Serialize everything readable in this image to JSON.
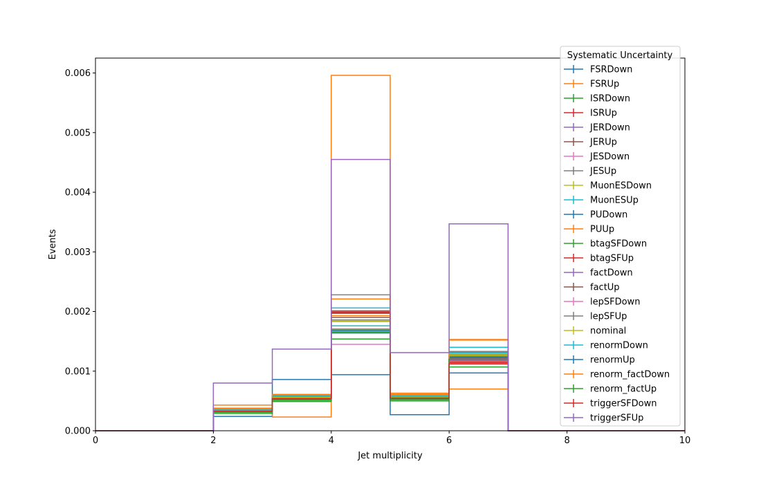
{
  "chart_data": {
    "type": "step-histogram",
    "xlabel": "Jet multiplicity",
    "ylabel": "Events",
    "xlim": [
      0,
      10
    ],
    "ylim": [
      0,
      0.00625
    ],
    "grid": false,
    "bin_edges": [
      0,
      1,
      2,
      3,
      4,
      5,
      6,
      7,
      8,
      9,
      10
    ],
    "x_ticks": [
      0,
      2,
      4,
      6,
      8,
      10
    ],
    "x_tick_labels": [
      "0",
      "2",
      "4",
      "6",
      "8",
      "10"
    ],
    "y_ticks": [
      0,
      0.001,
      0.002,
      0.003,
      0.004,
      0.005,
      0.006
    ],
    "y_tick_labels": [
      "0.000",
      "0.001",
      "0.002",
      "0.003",
      "0.004",
      "0.005",
      "0.006"
    ],
    "legend": {
      "title": "Systematic Uncertainty",
      "placement": "upper-right-outside"
    },
    "series": [
      {
        "name": "FSRDown",
        "color": "#1f77b4",
        "values": [
          0,
          0,
          0.00024,
          0.00086,
          0.00094,
          0.00027,
          0.00097,
          0,
          0,
          0
        ]
      },
      {
        "name": "FSRUp",
        "color": "#ff7f0e",
        "values": [
          0,
          0,
          0.00043,
          0.00023,
          0.00596,
          0.00063,
          0.0007,
          0,
          0,
          0
        ]
      },
      {
        "name": "ISRDown",
        "color": "#2ca02c",
        "values": [
          0,
          0,
          0.00029,
          0.00049,
          0.00154,
          0.0005,
          0.00107,
          0,
          0,
          0
        ]
      },
      {
        "name": "ISRUp",
        "color": "#d62728",
        "values": [
          0,
          0,
          0.00031,
          0.00052,
          0.00201,
          0.00054,
          0.00114,
          0,
          0,
          0
        ]
      },
      {
        "name": "JERDown",
        "color": "#9467bd",
        "values": [
          0,
          0,
          0.00032,
          0.00054,
          0.00167,
          0.00055,
          0.00118,
          0,
          0,
          0
        ]
      },
      {
        "name": "JERUp",
        "color": "#8c564b",
        "values": [
          0,
          0,
          0.00034,
          0.00055,
          0.00198,
          0.00056,
          0.00123,
          0,
          0,
          0
        ]
      },
      {
        "name": "JESDown",
        "color": "#e377c2",
        "values": [
          0,
          0,
          0.00033,
          0.00056,
          0.00145,
          0.00057,
          0.00121,
          0,
          0,
          0
        ]
      },
      {
        "name": "JESUp",
        "color": "#7f7f7f",
        "values": [
          0,
          0,
          0.00036,
          0.00059,
          0.00228,
          0.00058,
          0.00133,
          0,
          0,
          0
        ]
      },
      {
        "name": "MuonESDown",
        "color": "#bcbd22",
        "values": [
          0,
          0,
          0.00035,
          0.00057,
          0.00184,
          0.00056,
          0.00128,
          0,
          0,
          0
        ]
      },
      {
        "name": "MuonESUp",
        "color": "#17becf",
        "values": [
          0,
          0,
          0.00036,
          0.00058,
          0.00206,
          0.00058,
          0.0014,
          0,
          0,
          0
        ]
      },
      {
        "name": "PUDown",
        "color": "#1f77b4",
        "values": [
          0,
          0,
          0.00033,
          0.00054,
          0.00164,
          0.00053,
          0.00131,
          0,
          0,
          0
        ]
      },
      {
        "name": "PUUp",
        "color": "#ff7f0e",
        "values": [
          0,
          0,
          0.00038,
          0.00061,
          0.00193,
          0.00061,
          0.00153,
          0,
          0,
          0
        ]
      },
      {
        "name": "btagSFDown",
        "color": "#2ca02c",
        "values": [
          0,
          0,
          0.00031,
          0.00051,
          0.0017,
          0.00052,
          0.00124,
          0,
          0,
          0
        ]
      },
      {
        "name": "btagSFUp",
        "color": "#d62728",
        "values": [
          0,
          0,
          0.00033,
          0.00053,
          0.00199,
          0.00055,
          0.00116,
          0,
          0,
          0
        ]
      },
      {
        "name": "factDown",
        "color": "#9467bd",
        "values": [
          0,
          0,
          0.00034,
          0.00055,
          0.00168,
          0.00056,
          0.00119,
          0,
          0,
          0
        ]
      },
      {
        "name": "factUp",
        "color": "#8c564b",
        "values": [
          0,
          0,
          0.00034,
          0.00056,
          0.0019,
          0.00057,
          0.00122,
          0,
          0,
          0
        ]
      },
      {
        "name": "lepSFDown",
        "color": "#e377c2",
        "values": [
          0,
          0,
          0.00033,
          0.00055,
          0.00171,
          0.00055,
          0.00125,
          0,
          0,
          0
        ]
      },
      {
        "name": "lepSFUp",
        "color": "#7f7f7f",
        "values": [
          0,
          0,
          0.00035,
          0.00057,
          0.00186,
          0.00057,
          0.00127,
          0,
          0,
          0
        ]
      },
      {
        "name": "nominal",
        "color": "#bcbd22",
        "values": [
          0,
          0,
          0.00034,
          0.00056,
          0.00183,
          0.00056,
          0.00126,
          0,
          0,
          0
        ]
      },
      {
        "name": "renormDown",
        "color": "#17becf",
        "values": [
          0,
          0,
          0.00036,
          0.00058,
          0.00176,
          0.00058,
          0.0013,
          0,
          0,
          0
        ]
      },
      {
        "name": "renormUp",
        "color": "#1f77b4",
        "values": [
          0,
          0,
          0.00033,
          0.00054,
          0.00168,
          0.00054,
          0.00124,
          0,
          0,
          0
        ]
      },
      {
        "name": "renorm_factDown",
        "color": "#ff7f0e",
        "values": [
          0,
          0,
          0.00037,
          0.0006,
          0.00221,
          0.0006,
          0.00152,
          0,
          0,
          0
        ]
      },
      {
        "name": "renorm_factUp",
        "color": "#2ca02c",
        "values": [
          0,
          0,
          0.00032,
          0.00052,
          0.00165,
          0.00053,
          0.0012,
          0,
          0,
          0
        ]
      },
      {
        "name": "triggerSFDown",
        "color": "#d62728",
        "values": [
          0,
          0,
          0.00033,
          0.00054,
          0.00197,
          0.00055,
          0.00112,
          0,
          0,
          0
        ]
      },
      {
        "name": "triggerSFUp",
        "color": "#9467bd",
        "values": [
          0,
          0,
          0.0008,
          0.00137,
          0.00455,
          0.00131,
          0.00347,
          0,
          0,
          0
        ]
      }
    ]
  }
}
